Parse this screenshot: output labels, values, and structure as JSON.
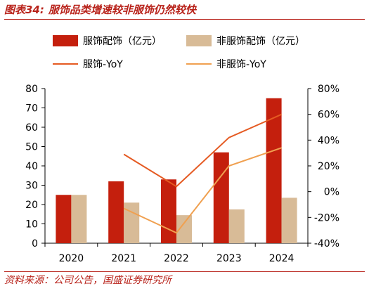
{
  "header": {
    "number": "图表34:",
    "title": "服饰品类增速较非服饰仍然较快"
  },
  "footer": {
    "source": "资料来源：公司公告，国盛证券研究所"
  },
  "colors": {
    "accent": "#b8221a",
    "bar_apparel": "#c41f0d",
    "bar_non_apparel": "#d8bb97",
    "line_apparel": "#e55a22",
    "line_non_apparel": "#f0a050"
  },
  "chart_data": {
    "type": "bar",
    "categories": [
      "2020",
      "2021",
      "2022",
      "2023",
      "2024"
    ],
    "series": [
      {
        "name": "服饰配饰（亿元）",
        "kind": "bar",
        "axis": "left",
        "values": [
          25,
          32,
          33,
          47,
          75
        ]
      },
      {
        "name": "非服饰配饰（亿元）",
        "kind": "bar",
        "axis": "left",
        "values": [
          25,
          21,
          14.5,
          17.5,
          23.5
        ]
      },
      {
        "name": "服饰-YoY",
        "kind": "line",
        "axis": "right",
        "values": [
          null,
          29,
          4,
          42,
          60
        ]
      },
      {
        "name": "非服饰-YoY",
        "kind": "line",
        "axis": "right",
        "values": [
          null,
          -13,
          -32,
          20,
          34
        ]
      }
    ],
    "y_left": {
      "min": 0,
      "max": 80,
      "ticks": [
        0,
        10,
        20,
        30,
        40,
        50,
        60,
        70,
        80
      ]
    },
    "y_right": {
      "min": -40,
      "max": 80,
      "ticks": [
        "-40%",
        "-20%",
        "0%",
        "20%",
        "40%",
        "60%",
        "80%"
      ]
    },
    "legend_position": "top",
    "grid": false
  }
}
